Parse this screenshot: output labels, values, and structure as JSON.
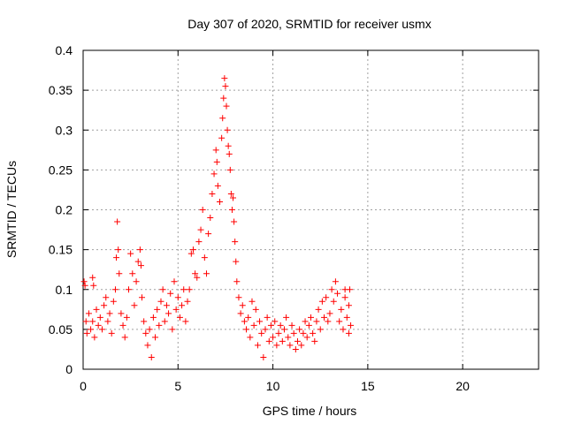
{
  "chart_data": {
    "type": "scatter",
    "title": "Day 307 of 2020, SRMTID for receiver usmx",
    "xlabel": "GPS time / hours",
    "ylabel": "SRMTID / TECUs",
    "xlim": [
      0,
      24
    ],
    "ylim": [
      0,
      0.4
    ],
    "xticks": [
      0,
      5,
      10,
      15,
      20
    ],
    "yticks": [
      0,
      0.05,
      0.1,
      0.15,
      0.2,
      0.25,
      0.3,
      0.35,
      0.4
    ],
    "xtick_labels": [
      "0",
      "5",
      "10",
      "15",
      "20"
    ],
    "ytick_labels": [
      "0",
      "0.05",
      "0.1",
      "0.15",
      "0.2",
      "0.25",
      "0.3",
      "0.35",
      "0.4"
    ],
    "grid": true,
    "marker": "+",
    "marker_color": "#ff0000",
    "series": [
      {
        "points": [
          [
            0.05,
            0.11
          ],
          [
            0.1,
            0.105
          ],
          [
            0.15,
            0.06
          ],
          [
            0.2,
            0.045
          ],
          [
            0.3,
            0.07
          ],
          [
            0.4,
            0.05
          ],
          [
            0.5,
            0.06
          ],
          [
            0.6,
            0.04
          ],
          [
            0.7,
            0.075
          ],
          [
            0.8,
            0.055
          ],
          [
            0.5,
            0.115
          ],
          [
            0.55,
            0.105
          ],
          [
            0.9,
            0.065
          ],
          [
            1.0,
            0.05
          ],
          [
            1.1,
            0.08
          ],
          [
            1.2,
            0.09
          ],
          [
            1.3,
            0.06
          ],
          [
            1.4,
            0.07
          ],
          [
            1.5,
            0.045
          ],
          [
            1.6,
            0.085
          ],
          [
            1.7,
            0.1
          ],
          [
            1.75,
            0.14
          ],
          [
            1.8,
            0.185
          ],
          [
            1.85,
            0.15
          ],
          [
            1.9,
            0.12
          ],
          [
            2.0,
            0.07
          ],
          [
            2.1,
            0.055
          ],
          [
            2.2,
            0.04
          ],
          [
            2.3,
            0.065
          ],
          [
            2.4,
            0.1
          ],
          [
            2.5,
            0.145
          ],
          [
            2.6,
            0.12
          ],
          [
            2.7,
            0.08
          ],
          [
            2.8,
            0.11
          ],
          [
            2.9,
            0.135
          ],
          [
            3.0,
            0.15
          ],
          [
            3.05,
            0.13
          ],
          [
            3.1,
            0.09
          ],
          [
            3.2,
            0.06
          ],
          [
            3.3,
            0.045
          ],
          [
            3.4,
            0.03
          ],
          [
            3.5,
            0.05
          ],
          [
            3.6,
            0.015
          ],
          [
            3.7,
            0.065
          ],
          [
            3.8,
            0.04
          ],
          [
            3.9,
            0.075
          ],
          [
            4.0,
            0.055
          ],
          [
            4.1,
            0.085
          ],
          [
            4.2,
            0.1
          ],
          [
            4.3,
            0.06
          ],
          [
            4.4,
            0.08
          ],
          [
            4.5,
            0.07
          ],
          [
            4.6,
            0.095
          ],
          [
            4.7,
            0.05
          ],
          [
            4.8,
            0.11
          ],
          [
            4.9,
            0.075
          ],
          [
            5.0,
            0.09
          ],
          [
            5.1,
            0.065
          ],
          [
            5.2,
            0.08
          ],
          [
            5.3,
            0.1
          ],
          [
            5.4,
            0.06
          ],
          [
            5.5,
            0.085
          ],
          [
            5.6,
            0.1
          ],
          [
            5.7,
            0.145
          ],
          [
            5.8,
            0.15
          ],
          [
            5.9,
            0.12
          ],
          [
            6.0,
            0.115
          ],
          [
            6.1,
            0.16
          ],
          [
            6.2,
            0.175
          ],
          [
            6.3,
            0.2
          ],
          [
            6.4,
            0.14
          ],
          [
            6.5,
            0.12
          ],
          [
            6.6,
            0.17
          ],
          [
            6.7,
            0.19
          ],
          [
            6.8,
            0.22
          ],
          [
            6.9,
            0.245
          ],
          [
            7.0,
            0.275
          ],
          [
            7.05,
            0.26
          ],
          [
            7.1,
            0.23
          ],
          [
            7.2,
            0.21
          ],
          [
            7.3,
            0.29
          ],
          [
            7.35,
            0.315
          ],
          [
            7.4,
            0.34
          ],
          [
            7.45,
            0.365
          ],
          [
            7.5,
            0.355
          ],
          [
            7.55,
            0.33
          ],
          [
            7.6,
            0.3
          ],
          [
            7.65,
            0.28
          ],
          [
            7.7,
            0.27
          ],
          [
            7.75,
            0.25
          ],
          [
            7.8,
            0.22
          ],
          [
            7.85,
            0.2
          ],
          [
            7.9,
            0.215
          ],
          [
            7.95,
            0.185
          ],
          [
            8.0,
            0.16
          ],
          [
            8.05,
            0.135
          ],
          [
            8.1,
            0.11
          ],
          [
            8.2,
            0.09
          ],
          [
            8.3,
            0.07
          ],
          [
            8.4,
            0.08
          ],
          [
            8.5,
            0.06
          ],
          [
            8.6,
            0.05
          ],
          [
            8.7,
            0.065
          ],
          [
            8.8,
            0.04
          ],
          [
            8.9,
            0.085
          ],
          [
            9.0,
            0.055
          ],
          [
            9.1,
            0.075
          ],
          [
            9.2,
            0.03
          ],
          [
            9.3,
            0.06
          ],
          [
            9.4,
            0.045
          ],
          [
            9.5,
            0.015
          ],
          [
            9.6,
            0.05
          ],
          [
            9.7,
            0.065
          ],
          [
            9.8,
            0.035
          ],
          [
            9.9,
            0.055
          ],
          [
            10.0,
            0.04
          ],
          [
            10.1,
            0.06
          ],
          [
            10.2,
            0.03
          ],
          [
            10.3,
            0.045
          ],
          [
            10.4,
            0.055
          ],
          [
            10.5,
            0.035
          ],
          [
            10.6,
            0.05
          ],
          [
            10.7,
            0.065
          ],
          [
            10.8,
            0.04
          ],
          [
            10.9,
            0.03
          ],
          [
            11.0,
            0.055
          ],
          [
            11.1,
            0.045
          ],
          [
            11.2,
            0.025
          ],
          [
            11.3,
            0.035
          ],
          [
            11.4,
            0.05
          ],
          [
            11.5,
            0.03
          ],
          [
            11.6,
            0.045
          ],
          [
            11.7,
            0.06
          ],
          [
            11.8,
            0.04
          ],
          [
            11.9,
            0.055
          ],
          [
            12.0,
            0.065
          ],
          [
            12.1,
            0.045
          ],
          [
            12.2,
            0.035
          ],
          [
            12.3,
            0.06
          ],
          [
            12.4,
            0.075
          ],
          [
            12.5,
            0.05
          ],
          [
            12.6,
            0.085
          ],
          [
            12.7,
            0.065
          ],
          [
            12.8,
            0.09
          ],
          [
            12.9,
            0.06
          ],
          [
            13.0,
            0.07
          ],
          [
            13.1,
            0.1
          ],
          [
            13.2,
            0.085
          ],
          [
            13.3,
            0.11
          ],
          [
            13.4,
            0.095
          ],
          [
            13.5,
            0.06
          ],
          [
            13.6,
            0.075
          ],
          [
            13.7,
            0.05
          ],
          [
            13.8,
            0.09
          ],
          [
            13.9,
            0.065
          ],
          [
            14.0,
            0.08
          ],
          [
            14.05,
            0.1
          ],
          [
            14.1,
            0.055
          ],
          [
            14.0,
            0.045
          ],
          [
            13.8,
            0.1
          ]
        ]
      }
    ]
  }
}
